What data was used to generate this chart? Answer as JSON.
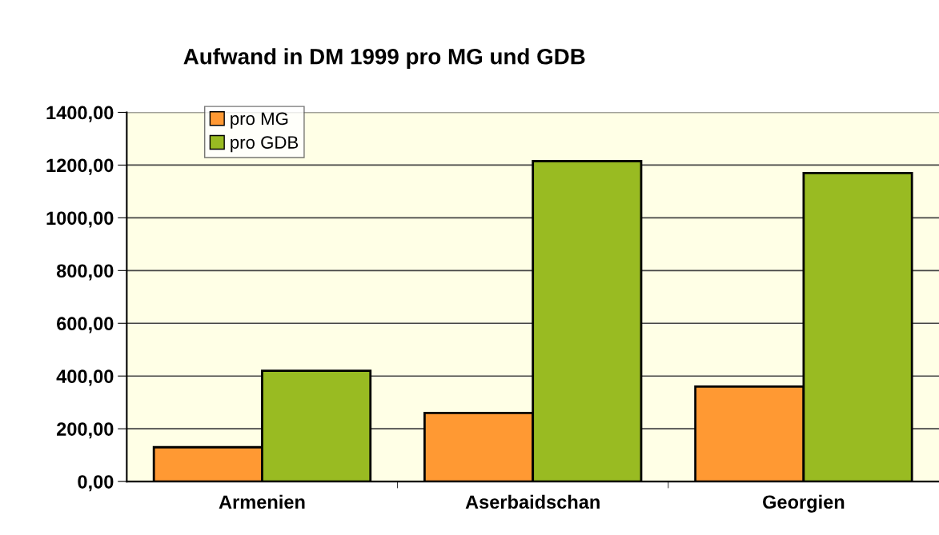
{
  "chart_data": {
    "type": "bar",
    "title": "Aufwand in DM 1999 pro MG und GDB",
    "categories": [
      "Armenien",
      "Aserbaidschan",
      "Georgien"
    ],
    "series": [
      {
        "name": "pro MG",
        "color": "#ff9933",
        "values": [
          130,
          260,
          360
        ]
      },
      {
        "name": "pro GDB",
        "color": "#99bb22",
        "values": [
          420,
          1215,
          1170
        ]
      }
    ],
    "ylim": [
      0,
      1400
    ],
    "yticks": [
      {
        "value": 0,
        "label": "0,00"
      },
      {
        "value": 200,
        "label": "200,00"
      },
      {
        "value": 400,
        "label": "400,00"
      },
      {
        "value": 600,
        "label": "600,00"
      },
      {
        "value": 800,
        "label": "800,00"
      },
      {
        "value": 1000,
        "label": "1000,00"
      },
      {
        "value": 1200,
        "label": "1200,00"
      },
      {
        "value": 1400,
        "label": "1400,00"
      }
    ],
    "grid": "y",
    "legend": "top left"
  }
}
